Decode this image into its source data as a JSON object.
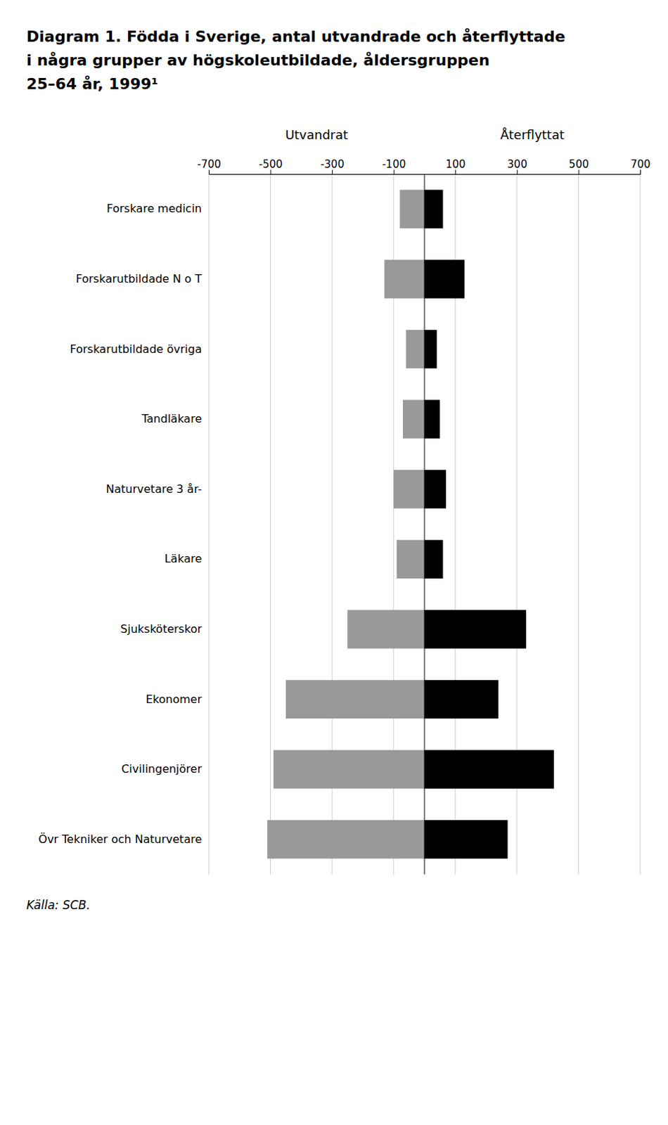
{
  "chart_data": {
    "type": "bar",
    "orientation": "horizontal",
    "title": [
      "Diagram 1. Födda i Sverige, antal utvandrade och återflyttade",
      "i några grupper av högskoleutbildade, åldersgruppen",
      "25–64 år, 1999¹"
    ],
    "source": "Källa: SCB.",
    "categories": [
      "Forskare medicin",
      "Forskarutbildade N o T",
      "Forskarutbildade övriga",
      "Tandläkare",
      "Naturvetare 3 år-",
      "Läkare",
      "Sjuksköterskor",
      "Ekonomer",
      "Civilingenjörer",
      "Övr Tekniker och Naturvetare"
    ],
    "series": [
      {
        "name": "Utvandrat",
        "color": "#999999",
        "values": [
          -80,
          -130,
          -60,
          -70,
          -100,
          -90,
          -250,
          -450,
          -490,
          -510
        ]
      },
      {
        "name": "Återflyttat",
        "color": "#000000",
        "values": [
          60,
          130,
          40,
          50,
          70,
          60,
          330,
          240,
          420,
          270
        ]
      }
    ],
    "xlim": [
      -700,
      700
    ],
    "xticks": [
      -700,
      -500,
      -300,
      -100,
      100,
      300,
      500,
      700
    ],
    "grid": true
  }
}
